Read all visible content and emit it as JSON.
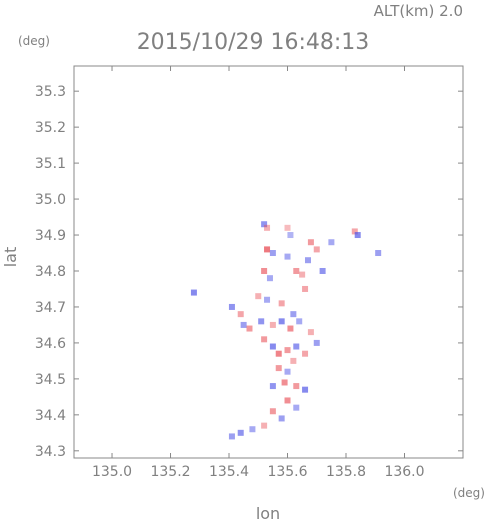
{
  "chart_data": {
    "type": "scatter",
    "title": "2015/10/29 16:48:13",
    "subtitle": "ALT(km) 2.0",
    "xlabel": "lon",
    "ylabel": "lat",
    "xunit": "(deg)",
    "yunit": "(deg)",
    "xlim": [
      134.87,
      136.2
    ],
    "ylim": [
      34.28,
      35.37
    ],
    "xticks": [
      "135.0",
      "135.2",
      "135.4",
      "135.6",
      "135.8",
      "136.0"
    ],
    "yticks": [
      "34.3",
      "34.4",
      "34.5",
      "34.6",
      "34.7",
      "34.8",
      "34.9",
      "35.0",
      "35.1",
      "35.2",
      "35.3"
    ],
    "grid": false,
    "colors": {
      "positive": "#e8474f",
      "negative": "#4a50e6",
      "weak": "#f3dede",
      "frame": "#888888"
    },
    "series": [
      {
        "values": [
          {
            "x": 135.52,
            "y": 34.93,
            "v": -0.6
          },
          {
            "x": 135.53,
            "y": 34.92,
            "v": 0.3
          },
          {
            "x": 135.6,
            "y": 34.92,
            "v": 0.2
          },
          {
            "x": 135.61,
            "y": 34.9,
            "v": -0.3
          },
          {
            "x": 135.68,
            "y": 34.88,
            "v": 0.5
          },
          {
            "x": 135.75,
            "y": 34.88,
            "v": -0.4
          },
          {
            "x": 135.83,
            "y": 34.91,
            "v": 0.4
          },
          {
            "x": 135.84,
            "y": 34.9,
            "v": -0.7
          },
          {
            "x": 135.91,
            "y": 34.85,
            "v": -0.5
          },
          {
            "x": 135.53,
            "y": 34.86,
            "v": 0.8
          },
          {
            "x": 135.55,
            "y": 34.85,
            "v": -0.5
          },
          {
            "x": 135.52,
            "y": 34.8,
            "v": 0.6
          },
          {
            "x": 135.54,
            "y": 34.78,
            "v": -0.4
          },
          {
            "x": 135.6,
            "y": 34.84,
            "v": -0.4
          },
          {
            "x": 135.63,
            "y": 34.8,
            "v": 0.5
          },
          {
            "x": 135.65,
            "y": 34.79,
            "v": 0.3
          },
          {
            "x": 135.67,
            "y": 34.83,
            "v": -0.5
          },
          {
            "x": 135.7,
            "y": 34.86,
            "v": 0.4
          },
          {
            "x": 135.72,
            "y": 34.8,
            "v": -0.6
          },
          {
            "x": 135.66,
            "y": 34.75,
            "v": 0.4
          },
          {
            "x": 135.28,
            "y": 34.74,
            "v": -0.7
          },
          {
            "x": 135.5,
            "y": 34.73,
            "v": 0.3
          },
          {
            "x": 135.53,
            "y": 34.72,
            "v": -0.4
          },
          {
            "x": 135.58,
            "y": 34.71,
            "v": 0.4
          },
          {
            "x": 135.62,
            "y": 34.68,
            "v": -0.5
          },
          {
            "x": 135.41,
            "y": 34.7,
            "v": -0.6
          },
          {
            "x": 135.44,
            "y": 34.68,
            "v": 0.4
          },
          {
            "x": 135.45,
            "y": 34.65,
            "v": -0.5
          },
          {
            "x": 135.47,
            "y": 34.64,
            "v": 0.5
          },
          {
            "x": 135.51,
            "y": 34.66,
            "v": -0.6
          },
          {
            "x": 135.55,
            "y": 34.65,
            "v": 0.3
          },
          {
            "x": 135.58,
            "y": 34.66,
            "v": -0.7
          },
          {
            "x": 135.61,
            "y": 34.64,
            "v": 0.6
          },
          {
            "x": 135.64,
            "y": 34.66,
            "v": -0.4
          },
          {
            "x": 135.68,
            "y": 34.63,
            "v": 0.3
          },
          {
            "x": 135.7,
            "y": 34.6,
            "v": -0.5
          },
          {
            "x": 135.52,
            "y": 34.61,
            "v": 0.5
          },
          {
            "x": 135.55,
            "y": 34.59,
            "v": -0.7
          },
          {
            "x": 135.57,
            "y": 34.57,
            "v": 0.7
          },
          {
            "x": 135.6,
            "y": 34.58,
            "v": 0.5
          },
          {
            "x": 135.63,
            "y": 34.59,
            "v": -0.6
          },
          {
            "x": 135.66,
            "y": 34.57,
            "v": 0.4
          },
          {
            "x": 135.57,
            "y": 34.53,
            "v": 0.5
          },
          {
            "x": 135.6,
            "y": 34.52,
            "v": -0.4
          },
          {
            "x": 135.62,
            "y": 34.55,
            "v": 0.3
          },
          {
            "x": 135.55,
            "y": 34.48,
            "v": -0.6
          },
          {
            "x": 135.59,
            "y": 34.49,
            "v": 0.6
          },
          {
            "x": 135.63,
            "y": 34.48,
            "v": 0.5
          },
          {
            "x": 135.66,
            "y": 34.47,
            "v": -0.7
          },
          {
            "x": 135.6,
            "y": 34.44,
            "v": 0.6
          },
          {
            "x": 135.63,
            "y": 34.42,
            "v": -0.4
          },
          {
            "x": 135.55,
            "y": 34.41,
            "v": 0.5
          },
          {
            "x": 135.58,
            "y": 34.39,
            "v": -0.5
          },
          {
            "x": 135.52,
            "y": 34.37,
            "v": 0.3
          },
          {
            "x": 135.48,
            "y": 34.36,
            "v": -0.4
          },
          {
            "x": 135.44,
            "y": 34.35,
            "v": -0.6
          },
          {
            "x": 135.41,
            "y": 34.34,
            "v": -0.5
          }
        ]
      }
    ]
  }
}
